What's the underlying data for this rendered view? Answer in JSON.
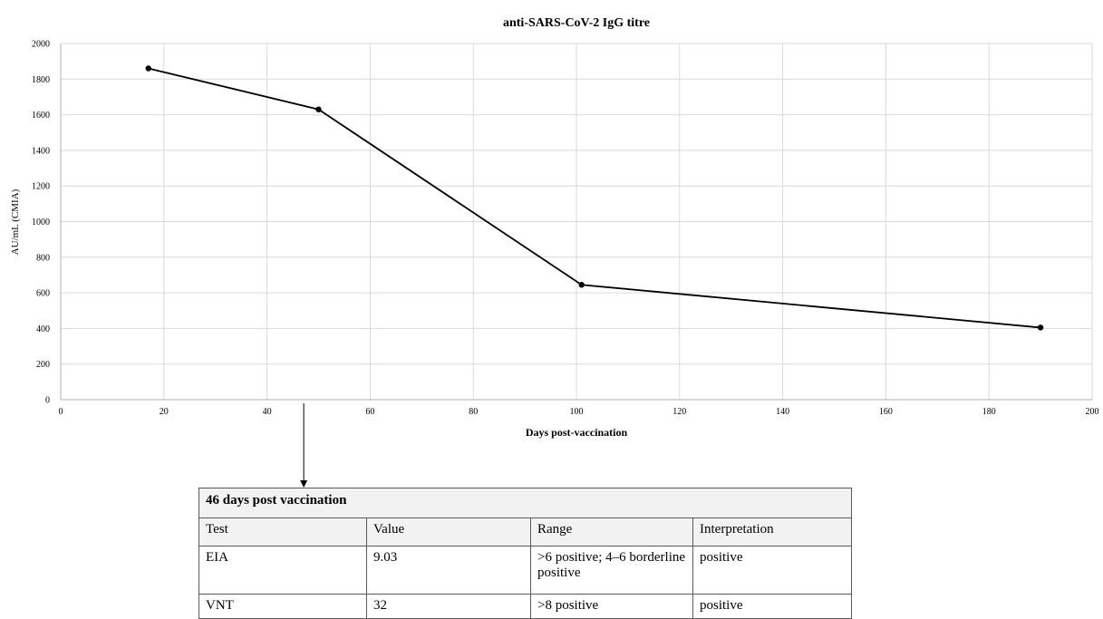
{
  "chart_data": {
    "type": "line",
    "title": "anti-SARS-CoV-2 IgG titre",
    "xlabel": "Days post-vaccination",
    "ylabel": "AU/mL (CMIA)",
    "xlim": [
      0,
      200
    ],
    "ylim": [
      0,
      2000
    ],
    "x_ticks": [
      0,
      20,
      40,
      60,
      80,
      100,
      120,
      140,
      160,
      180,
      200
    ],
    "y_ticks": [
      0,
      200,
      400,
      600,
      800,
      1000,
      1200,
      1400,
      1600,
      1800,
      2000
    ],
    "grid": true,
    "series": [
      {
        "x": [
          17,
          50,
          101,
          190
        ],
        "y": [
          1860,
          1630,
          645,
          405
        ]
      }
    ],
    "annotation": {
      "x": 48
    }
  },
  "table": {
    "title": "46 days post vaccination",
    "columns": [
      "Test",
      "Value",
      "Range",
      "Interpretation"
    ],
    "rows": [
      [
        "EIA",
        "9.03",
        ">6 positive; 4–6 borderline positive",
        "positive"
      ],
      [
        "VNT",
        "32",
        ">8 positive",
        "positive"
      ]
    ]
  }
}
